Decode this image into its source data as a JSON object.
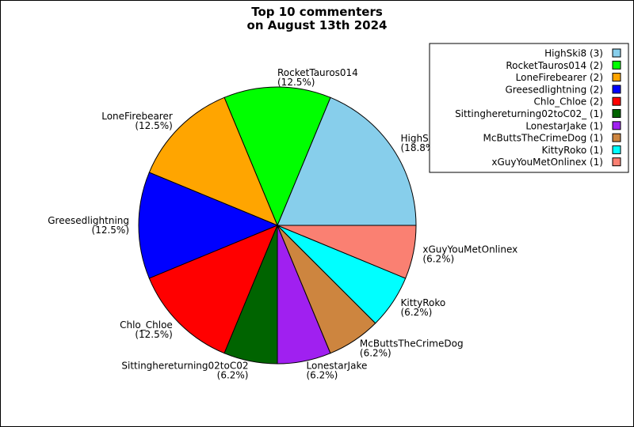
{
  "chart_data": {
    "type": "pie",
    "title_lines": [
      "Top 10 commenters",
      "on August 13th 2024"
    ],
    "legend_position": "top-right",
    "slices": [
      {
        "label": "HighSki8",
        "value": 3,
        "percent_label": "(18.8%)",
        "legend_label": "HighSki8 (3)",
        "color": "#87ceeb"
      },
      {
        "label": "RocketTauros014",
        "value": 2,
        "percent_label": "(12.5%)",
        "legend_label": "RocketTauros014 (2)",
        "color": "#00ff00"
      },
      {
        "label": "LoneFirebearer",
        "value": 2,
        "percent_label": "(12.5%)",
        "legend_label": "LoneFirebearer (2)",
        "color": "#ffa500"
      },
      {
        "label": "Greesedlightning",
        "value": 2,
        "percent_label": "(12.5%)",
        "legend_label": "Greesedlightning (2)",
        "color": "#0000ff"
      },
      {
        "label": "Chlo_Chloe",
        "value": 2,
        "percent_label": "(12.5%)",
        "legend_label": "Chlo_Chloe (2)",
        "color": "#ff0000"
      },
      {
        "label": "Sittinghereturning02toC02",
        "value": 1,
        "percent_label": "(6.2%)",
        "legend_label": "Sittinghereturning02toC02_ (1)",
        "color": "#006400"
      },
      {
        "label": "LonestarJake",
        "value": 1,
        "percent_label": "(6.2%)",
        "legend_label": "LonestarJake (1)",
        "color": "#a020f0"
      },
      {
        "label": "McButtsTheCrimeDog",
        "value": 1,
        "percent_label": "(6.2%)",
        "legend_label": "McButtsTheCrimeDog (1)",
        "color": "#cd853f"
      },
      {
        "label": "KittyRoko",
        "value": 1,
        "percent_label": "(6.2%)",
        "legend_label": "KittyRoko (1)",
        "color": "#00ffff"
      },
      {
        "label": "xGuyYouMetOnlinex",
        "value": 1,
        "percent_label": "(6.2%)",
        "legend_label": "xGuyYouMetOnlinex (1)",
        "color": "#fa8072"
      }
    ]
  }
}
